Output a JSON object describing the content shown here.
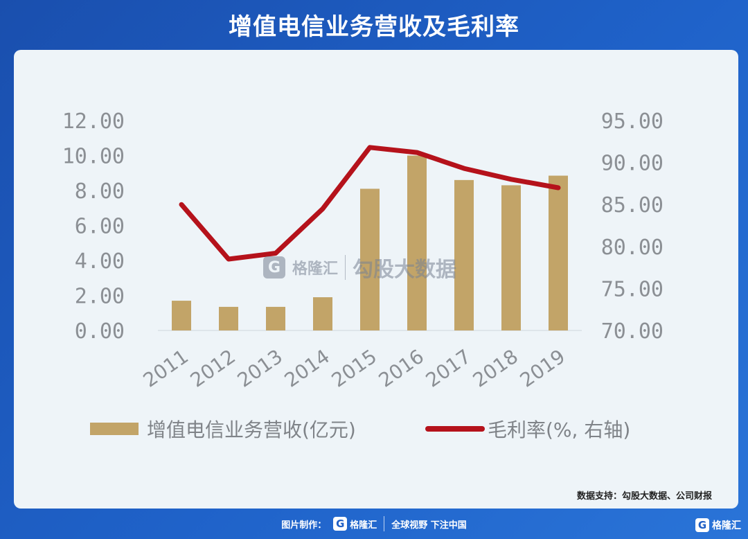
{
  "header": {
    "title": "增值电信业务营收及毛利率"
  },
  "chart_data": {
    "type": "bar",
    "categories": [
      "2011",
      "2012",
      "2013",
      "2014",
      "2015",
      "2016",
      "2017",
      "2018",
      "2019"
    ],
    "series": [
      {
        "name": "增值电信业务营收(亿元)",
        "type": "bar",
        "axis": "left",
        "color": "#c2a468",
        "values": [
          1.7,
          1.35,
          1.35,
          1.9,
          8.1,
          10.0,
          8.6,
          8.3,
          8.85
        ]
      },
      {
        "name": "毛利率(%, 右轴)",
        "type": "line",
        "axis": "right",
        "color": "#b5121b",
        "values": [
          85.0,
          78.5,
          79.2,
          84.5,
          91.8,
          91.2,
          89.3,
          88.0,
          87.0
        ]
      }
    ],
    "y_left": {
      "min": 0,
      "max": 12,
      "ticks": [
        "0.00",
        "2.00",
        "4.00",
        "6.00",
        "8.00",
        "10.00",
        "12.00"
      ]
    },
    "y_right": {
      "min": 70,
      "max": 95,
      "ticks": [
        "70.00",
        "75.00",
        "80.00",
        "85.00",
        "90.00",
        "95.00"
      ]
    },
    "grid": false,
    "legend_placement": "bottom"
  },
  "watermark": {
    "brand": "格隆汇",
    "text": "勾股大数据"
  },
  "source": "数据支持：勾股大数据、公司财报",
  "footer": {
    "made_by": "图片制作：",
    "brand": "格隆汇",
    "slogan": "全球视野 下注中国",
    "g": "G"
  },
  "corner": {
    "brand": "格隆汇",
    "g": "G"
  }
}
